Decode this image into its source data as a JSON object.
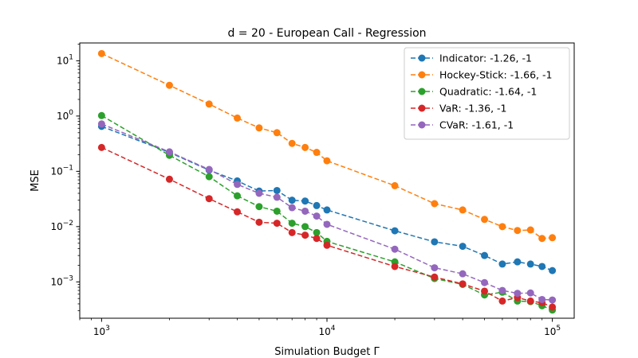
{
  "chart_data": {
    "type": "line",
    "title": "d = 20 - European Call - Regression",
    "xlabel": "Simulation Budget Γ",
    "ylabel": "MSE",
    "xscale": "log",
    "yscale": "log",
    "xlim": [
      800,
      125000
    ],
    "ylim": [
      0.00022,
      21
    ],
    "x_ticks": [
      {
        "base": "10",
        "exp": "3"
      },
      {
        "base": "10",
        "exp": "4"
      },
      {
        "base": "10",
        "exp": "5"
      }
    ],
    "y_ticks": [
      {
        "base": "10",
        "exp": "1"
      },
      {
        "base": "10",
        "exp": "0"
      },
      {
        "base": "10",
        "exp": "−1"
      },
      {
        "base": "10",
        "exp": "−2"
      },
      {
        "base": "10",
        "exp": "−3"
      }
    ],
    "grid": false,
    "legend": "top-right",
    "x": [
      1000,
      2000,
      3000,
      4000,
      5000,
      6000,
      7000,
      8000,
      9000,
      10000,
      20000,
      30000,
      40000,
      50000,
      60000,
      70000,
      80000,
      90000,
      100000
    ],
    "series": [
      {
        "name": "Indicator: -1.26, -1",
        "color": "#1f77b4",
        "values": [
          0.65,
          0.22,
          0.105,
          0.067,
          0.044,
          0.045,
          0.03,
          0.029,
          0.024,
          0.02,
          0.0084,
          0.0053,
          0.0044,
          0.003,
          0.0021,
          0.0023,
          0.0021,
          0.0019,
          0.0016
        ]
      },
      {
        "name": "Hockey-Stick: -1.66, -1",
        "color": "#ff7f0e",
        "values": [
          13.5,
          3.6,
          1.65,
          0.92,
          0.61,
          0.5,
          0.32,
          0.27,
          0.22,
          0.155,
          0.055,
          0.026,
          0.02,
          0.0135,
          0.01,
          0.0085,
          0.0087,
          0.0061,
          0.0063
        ]
      },
      {
        "name": "Quadratic: -1.64, -1",
        "color": "#2ca02c",
        "values": [
          1.02,
          0.195,
          0.08,
          0.036,
          0.023,
          0.019,
          0.0115,
          0.01,
          0.0078,
          0.0054,
          0.0023,
          0.00115,
          0.0009,
          0.00058,
          0.00065,
          0.00045,
          0.00044,
          0.00037,
          0.00031
        ]
      },
      {
        "name": "VaR: -1.36, -1",
        "color": "#d62728",
        "values": [
          0.27,
          0.072,
          0.032,
          0.0185,
          0.012,
          0.0115,
          0.0078,
          0.007,
          0.0061,
          0.0046,
          0.0019,
          0.00122,
          0.00092,
          0.00068,
          0.00045,
          0.00052,
          0.00045,
          0.00042,
          0.00035
        ]
      },
      {
        "name": "CVaR: -1.61, -1",
        "color": "#9467bd",
        "values": [
          0.72,
          0.225,
          0.108,
          0.058,
          0.04,
          0.034,
          0.022,
          0.019,
          0.0155,
          0.011,
          0.0039,
          0.0018,
          0.0014,
          0.00097,
          0.0007,
          0.00062,
          0.00063,
          0.00048,
          0.00047
        ]
      }
    ]
  }
}
